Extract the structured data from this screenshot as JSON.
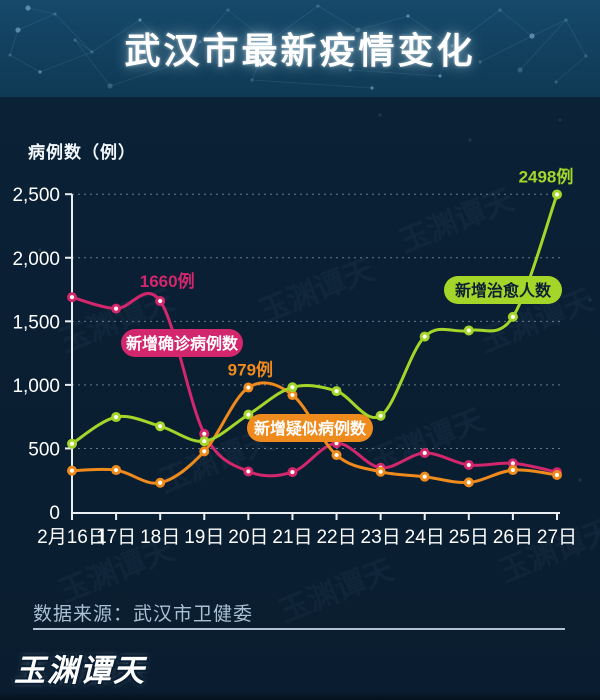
{
  "page": {
    "title": "武汉市最新疫情变化",
    "logo_text": "玉渊谭天",
    "watermark_text": "玉渊谭天"
  },
  "colors": {
    "background": "#0a1f33",
    "header_background": "#113f5c",
    "confirmed_pink": "#d2276d",
    "suspected_orange": "#ef8a1d",
    "cured_green": "#a4d62a",
    "axis_text": "#ffffff",
    "source_text": "#a9bfd3"
  },
  "chart_data": {
    "type": "line",
    "title": "武汉市最新疫情变化",
    "xlabel": "",
    "ylabel": "病例数（例）",
    "source": "数据来源：武汉市卫健委",
    "categories": [
      "2月16日",
      "17日",
      "18日",
      "19日",
      "20日",
      "21日",
      "22日",
      "23日",
      "24日",
      "25日",
      "26日",
      "27日"
    ],
    "ylim": [
      0,
      2500
    ],
    "yticks": [
      0,
      500,
      1000,
      1500,
      2000,
      2500
    ],
    "grid": "horizontal-dashed",
    "legend_position": "inline-labels-on-lines",
    "series": [
      {
        "name": "新增确诊病例数",
        "color": "#d2276d",
        "values": [
          1690,
          1600,
          1660,
          615,
          319,
          314,
          541,
          348,
          464,
          370,
          383,
          313
        ],
        "annotation": {
          "text": "1660例",
          "index": 2
        }
      },
      {
        "name": "新增疑似病例数",
        "color": "#ef8a1d",
        "values": [
          325,
          330,
          230,
          477,
          979,
          920,
          448,
          317,
          278,
          233,
          330,
          291
        ],
        "annotation": {
          "text": "979例",
          "index": 4
        }
      },
      {
        "name": "新增治愈人数",
        "color": "#a4d62a",
        "values": [
          537,
          747,
          675,
          557,
          766,
          981,
          951,
          757,
          1380,
          1428,
          1535,
          2498
        ],
        "annotation": {
          "text": "2498例",
          "index": 11
        }
      }
    ]
  }
}
